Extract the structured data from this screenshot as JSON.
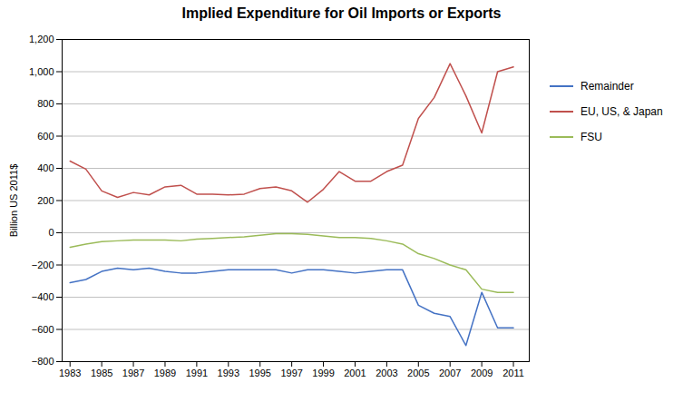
{
  "chart_data": {
    "type": "line",
    "title": "Implied Expenditure for Oil Imports or Exports",
    "ylabel": "Billion US 2011$",
    "x": [
      1983,
      1984,
      1985,
      1986,
      1987,
      1988,
      1989,
      1990,
      1991,
      1992,
      1993,
      1994,
      1995,
      1996,
      1997,
      1998,
      1999,
      2000,
      2001,
      2002,
      2003,
      2004,
      2005,
      2006,
      2007,
      2008,
      2009,
      2010,
      2011
    ],
    "series": [
      {
        "name": "Remainder",
        "color": "#4472c4",
        "values": [
          -310,
          -290,
          -240,
          -220,
          -230,
          -220,
          -240,
          -250,
          -250,
          -240,
          -230,
          -230,
          -230,
          -230,
          -250,
          -230,
          -230,
          -240,
          -250,
          -240,
          -230,
          -230,
          -450,
          -500,
          -520,
          -700,
          -370,
          -590,
          -590
        ]
      },
      {
        "name": "EU, US, & Japan",
        "color": "#c0504d",
        "values": [
          445,
          395,
          260,
          220,
          250,
          235,
          285,
          295,
          240,
          240,
          235,
          240,
          275,
          285,
          260,
          190,
          270,
          380,
          320,
          320,
          380,
          420,
          710,
          840,
          1050,
          850,
          620,
          1000,
          1030
        ]
      },
      {
        "name": "FSU",
        "color": "#9bbb59",
        "values": [
          -90,
          -70,
          -55,
          -50,
          -45,
          -45,
          -45,
          -50,
          -40,
          -35,
          -30,
          -25,
          -15,
          -5,
          -5,
          -10,
          -20,
          -30,
          -30,
          -35,
          -50,
          -70,
          -130,
          -160,
          -200,
          -230,
          -350,
          -370,
          -370
        ]
      }
    ],
    "xlim": [
      1982.5,
      2012
    ],
    "xticks": [
      1983,
      1985,
      1987,
      1989,
      1991,
      1993,
      1995,
      1997,
      1999,
      2001,
      2003,
      2005,
      2007,
      2009,
      2011
    ],
    "ylim": [
      -800,
      1200
    ],
    "yticks": [
      -800,
      -600,
      -400,
      -200,
      0,
      200,
      400,
      600,
      800,
      1000,
      1200
    ],
    "grid": "y",
    "legend": "right"
  }
}
